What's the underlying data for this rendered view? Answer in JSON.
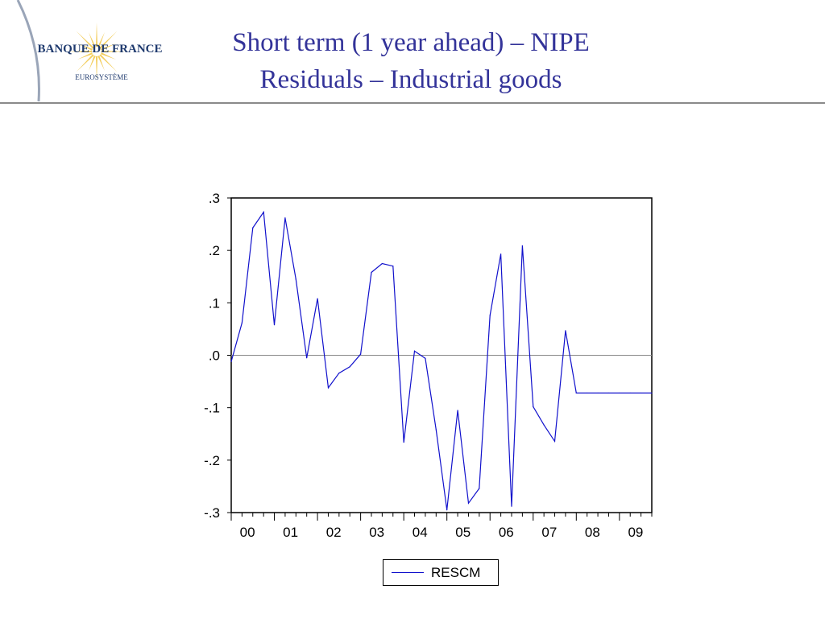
{
  "header": {
    "logo_text": "BANQUE DE FRANCE",
    "logo_subtext": "EUROSYSTÈME",
    "title_line1": "Short term (1 year ahead) – NIPE",
    "title_line2": "Residuals – Industrial goods"
  },
  "colors": {
    "title": "#333399",
    "series": "#1111cc",
    "zero_line": "#888888",
    "logo_navy": "#1f3a6e",
    "logo_gold": "#f2c94c"
  },
  "chart_data": {
    "type": "line",
    "title": "",
    "xlabel": "",
    "ylabel": "",
    "xlim": [
      2000.0,
      2009.75
    ],
    "ylim": [
      -0.3,
      0.3
    ],
    "yticks": [
      0.3,
      0.2,
      0.1,
      0.0,
      -0.1,
      -0.2,
      -0.3
    ],
    "ytick_labels": [
      ".3",
      ".2",
      ".1",
      ".0",
      "-.1",
      "-.2",
      "-.3"
    ],
    "xtick_labels": [
      "00",
      "01",
      "02",
      "03",
      "04",
      "05",
      "06",
      "07",
      "08",
      "09"
    ],
    "reference_line": 0.0,
    "legend": "bottom-center",
    "grid": false,
    "series": [
      {
        "name": "RESCM",
        "x": [
          2000.0,
          2000.25,
          2000.5,
          2000.75,
          2001.0,
          2001.25,
          2001.5,
          2001.75,
          2002.0,
          2002.25,
          2002.5,
          2002.75,
          2003.0,
          2003.25,
          2003.5,
          2003.75,
          2004.0,
          2004.25,
          2004.5,
          2004.75,
          2005.0,
          2005.25,
          2005.5,
          2005.75,
          2006.0,
          2006.25,
          2006.5,
          2006.75,
          2007.0,
          2007.25,
          2007.5,
          2007.75,
          2008.0,
          2008.25,
          2008.5,
          2008.75,
          2009.0,
          2009.25,
          2009.5,
          2009.75
        ],
        "values": [
          -0.012,
          0.062,
          0.243,
          0.273,
          0.058,
          0.262,
          0.145,
          -0.005,
          0.108,
          -0.062,
          -0.034,
          -0.022,
          0.002,
          0.158,
          0.175,
          0.17,
          -0.166,
          0.008,
          -0.006,
          -0.142,
          -0.295,
          -0.105,
          -0.282,
          -0.254,
          0.076,
          0.193,
          -0.288,
          0.209,
          -0.098,
          -0.133,
          -0.164,
          0.047,
          -0.072,
          -0.072,
          -0.072,
          -0.072,
          -0.072,
          -0.072,
          -0.072,
          -0.072
        ]
      }
    ]
  }
}
